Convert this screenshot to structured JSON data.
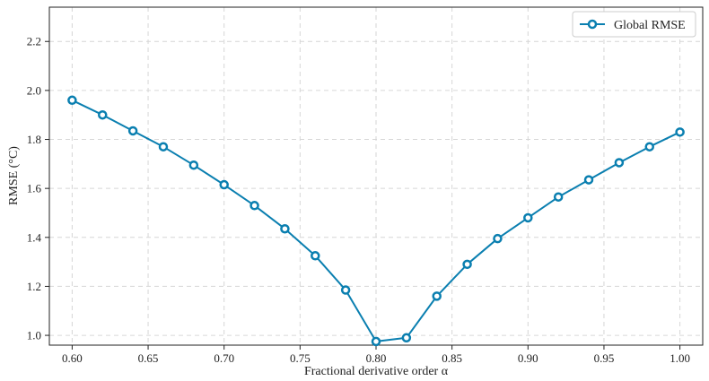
{
  "chart_data": {
    "type": "line",
    "title": "",
    "xlabel": "Fractional derivative order α",
    "ylabel": "RMSE (°C)",
    "xlim": [
      0.585,
      1.015
    ],
    "ylim": [
      0.96,
      2.34
    ],
    "xticks": [
      0.6,
      0.65,
      0.7,
      0.75,
      0.8,
      0.85,
      0.9,
      0.95,
      1.0
    ],
    "xtick_labels": [
      "0.60",
      "0.65",
      "0.70",
      "0.75",
      "0.80",
      "0.85",
      "0.90",
      "0.95",
      "1.00"
    ],
    "yticks": [
      1.0,
      1.2,
      1.4,
      1.6,
      1.8,
      2.0,
      2.2
    ],
    "ytick_labels": [
      "1.0",
      "1.2",
      "1.4",
      "1.6",
      "1.8",
      "2.0",
      "2.2"
    ],
    "grid": true,
    "legend_position": "top-right",
    "series": [
      {
        "name": "Global RMSE",
        "color": "#0a7fb0",
        "marker": "circle-open",
        "x": [
          0.6,
          0.62,
          0.64,
          0.66,
          0.68,
          0.7,
          0.72,
          0.74,
          0.76,
          0.78,
          0.8,
          0.82,
          0.84,
          0.86,
          0.88,
          0.9,
          0.92,
          0.94,
          0.96,
          0.98,
          1.0
        ],
        "y": [
          1.96,
          1.9,
          1.835,
          1.77,
          1.695,
          1.615,
          1.53,
          1.435,
          1.325,
          1.185,
          0.975,
          0.99,
          1.16,
          1.29,
          1.395,
          1.48,
          1.565,
          1.635,
          1.705,
          1.77,
          1.83
        ]
      }
    ]
  }
}
